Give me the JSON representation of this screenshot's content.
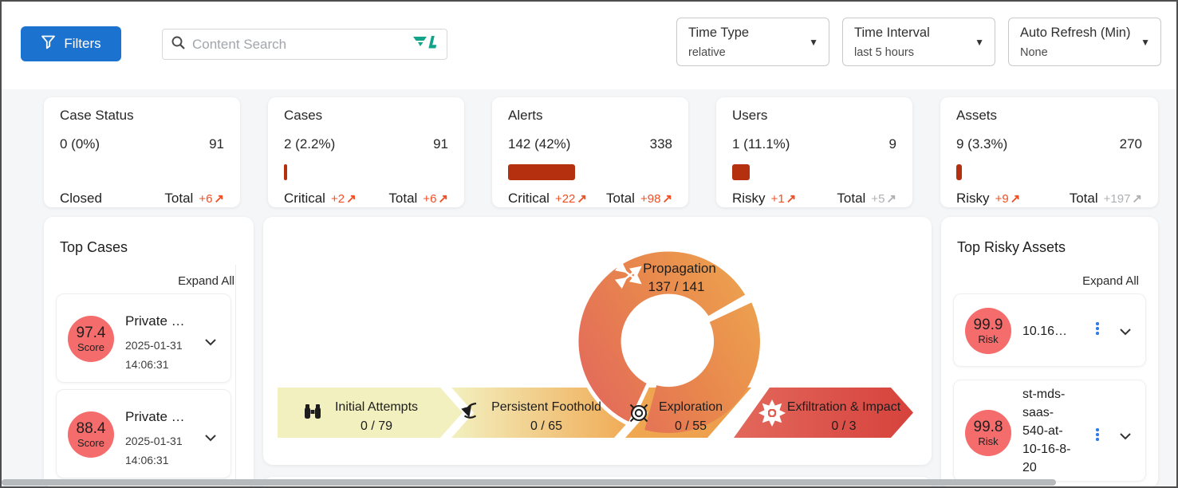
{
  "icons": {
    "caret": "▼",
    "trend_arrow": "↗"
  },
  "colors": {
    "accent_blue": "#1b73cf",
    "bar_red": "#b5300e",
    "delta_orange": "#f04f23",
    "delta_gray": "#aeb0b3",
    "badge_red": "#f56c6c",
    "kebab_blue": "#2f7ae5",
    "logo_teal": "#12a48b"
  },
  "header": {
    "filters_label": "Filters",
    "search_placeholder": "Content Search",
    "dropdowns": [
      {
        "label": "Time Type",
        "value": "relative"
      },
      {
        "label": "Time Interval",
        "value": "last 5 hours"
      },
      {
        "label": "Auto Refresh (Min)",
        "value": "None"
      }
    ]
  },
  "stat_cards": [
    {
      "title": "Case Status",
      "left_value": "0 (0%)",
      "right_value": "91",
      "bar_pct": 0,
      "left_label": "Closed",
      "left_delta": "",
      "left_delta_color": "orange",
      "right_label": "Total",
      "right_delta": "+6",
      "right_delta_color": "orange"
    },
    {
      "title": "Cases",
      "left_value": "2 (2.2%)",
      "right_value": "91",
      "bar_pct": 2.2,
      "left_label": "Critical",
      "left_delta": "+2",
      "left_delta_color": "orange",
      "right_label": "Total",
      "right_delta": "+6",
      "right_delta_color": "orange"
    },
    {
      "title": "Alerts",
      "left_value": "142 (42%)",
      "right_value": "338",
      "bar_pct": 42,
      "left_label": "Critical",
      "left_delta": "+22",
      "left_delta_color": "orange",
      "right_label": "Total",
      "right_delta": "+98",
      "right_delta_color": "orange"
    },
    {
      "title": "Users",
      "left_value": "1 (11.1%)",
      "right_value": "9",
      "bar_pct": 11.1,
      "left_label": "Risky",
      "left_delta": "+1",
      "left_delta_color": "orange",
      "right_label": "Total",
      "right_delta": "+5",
      "right_delta_color": "gray"
    },
    {
      "title": "Assets",
      "left_value": "9 (3.3%)",
      "right_value": "270",
      "bar_pct": 3.3,
      "left_label": "Risky",
      "left_delta": "+9",
      "left_delta_color": "orange",
      "right_label": "Total",
      "right_delta": "+197",
      "right_delta_color": "gray"
    }
  ],
  "top_cases": {
    "title": "Top Cases",
    "expand_all": "Expand All",
    "items": [
      {
        "score": "97.4",
        "score_label": "Score",
        "name": "Private …",
        "date": "2025-01-31",
        "time": "14:06:31"
      },
      {
        "score": "88.4",
        "score_label": "Score",
        "name": "Private …",
        "date": "2025-01-31",
        "time": "14:06:31"
      }
    ]
  },
  "kill_chain": {
    "type": "funnel-cycle",
    "stages": [
      {
        "name": "Initial Attempts",
        "value": "0 / 79"
      },
      {
        "name": "Persistent Foothold",
        "value": "0 / 65"
      },
      {
        "name": "Exploration",
        "value": "0 / 55"
      },
      {
        "name": "Exfiltration & Impact",
        "value": "0 / 3"
      }
    ],
    "ring": {
      "label": "Propagation",
      "value": "137 / 141"
    }
  },
  "top_risky_assets": {
    "title": "Top Risky Assets",
    "expand_all": "Expand All",
    "items": [
      {
        "risk": "99.9",
        "risk_label": "Risk",
        "name": "10.16…"
      },
      {
        "risk": "99.8",
        "risk_label": "Risk",
        "name": "st-mds-saas-540-at-10-16-8-20"
      }
    ]
  }
}
